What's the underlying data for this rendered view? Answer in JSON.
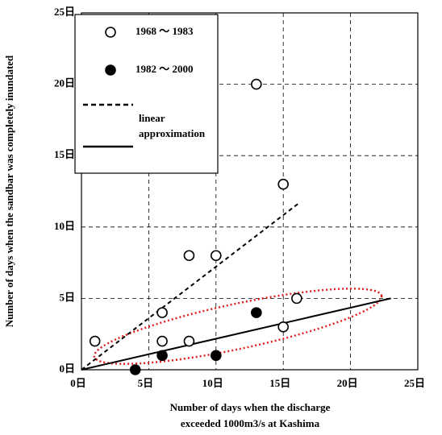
{
  "chart_data": {
    "type": "scatter",
    "ylabel": "Number of days when the sandbar was completely inundated",
    "xlabel": [
      "Number of days when the discharge",
      "exceeded 1000m3/s at Kashima"
    ],
    "xlim": [
      0,
      25
    ],
    "ylim": [
      0,
      25
    ],
    "xticks": [
      {
        "value": 0,
        "label": "0日"
      },
      {
        "value": 5,
        "label": "5日"
      },
      {
        "value": 10,
        "label": "10日"
      },
      {
        "value": 15,
        "label": "15日"
      },
      {
        "value": 20,
        "label": "20日"
      },
      {
        "value": 25,
        "label": "25日"
      }
    ],
    "yticks": [
      {
        "value": 0,
        "label": "0日"
      },
      {
        "value": 5,
        "label": "5日"
      },
      {
        "value": 10,
        "label": "10日"
      },
      {
        "value": 15,
        "label": "15日"
      },
      {
        "value": 20,
        "label": "20日"
      },
      {
        "value": 25,
        "label": "25日"
      }
    ],
    "grid": true,
    "series": [
      {
        "name": "1968 ～ 1983",
        "marker": "open",
        "color": "#000000",
        "x": [
          1,
          6,
          6,
          8,
          8,
          10,
          13,
          15,
          15,
          16
        ],
        "values": [
          2,
          4,
          2,
          8,
          2,
          8,
          20,
          13,
          3,
          5
        ]
      },
      {
        "name": "1982 ～ 2000",
        "marker": "filled",
        "color": "#000000",
        "x": [
          4,
          6,
          10,
          13
        ],
        "values": [
          0,
          1,
          1,
          4
        ]
      }
    ],
    "fits": [
      {
        "style": "dashed",
        "x": [
          0,
          16.2
        ],
        "values": [
          0,
          11.7
        ]
      },
      {
        "style": "solid",
        "x": [
          0,
          23
        ],
        "values": [
          0,
          5
        ]
      }
    ],
    "fit_label": [
      "linear",
      "approximation"
    ]
  }
}
